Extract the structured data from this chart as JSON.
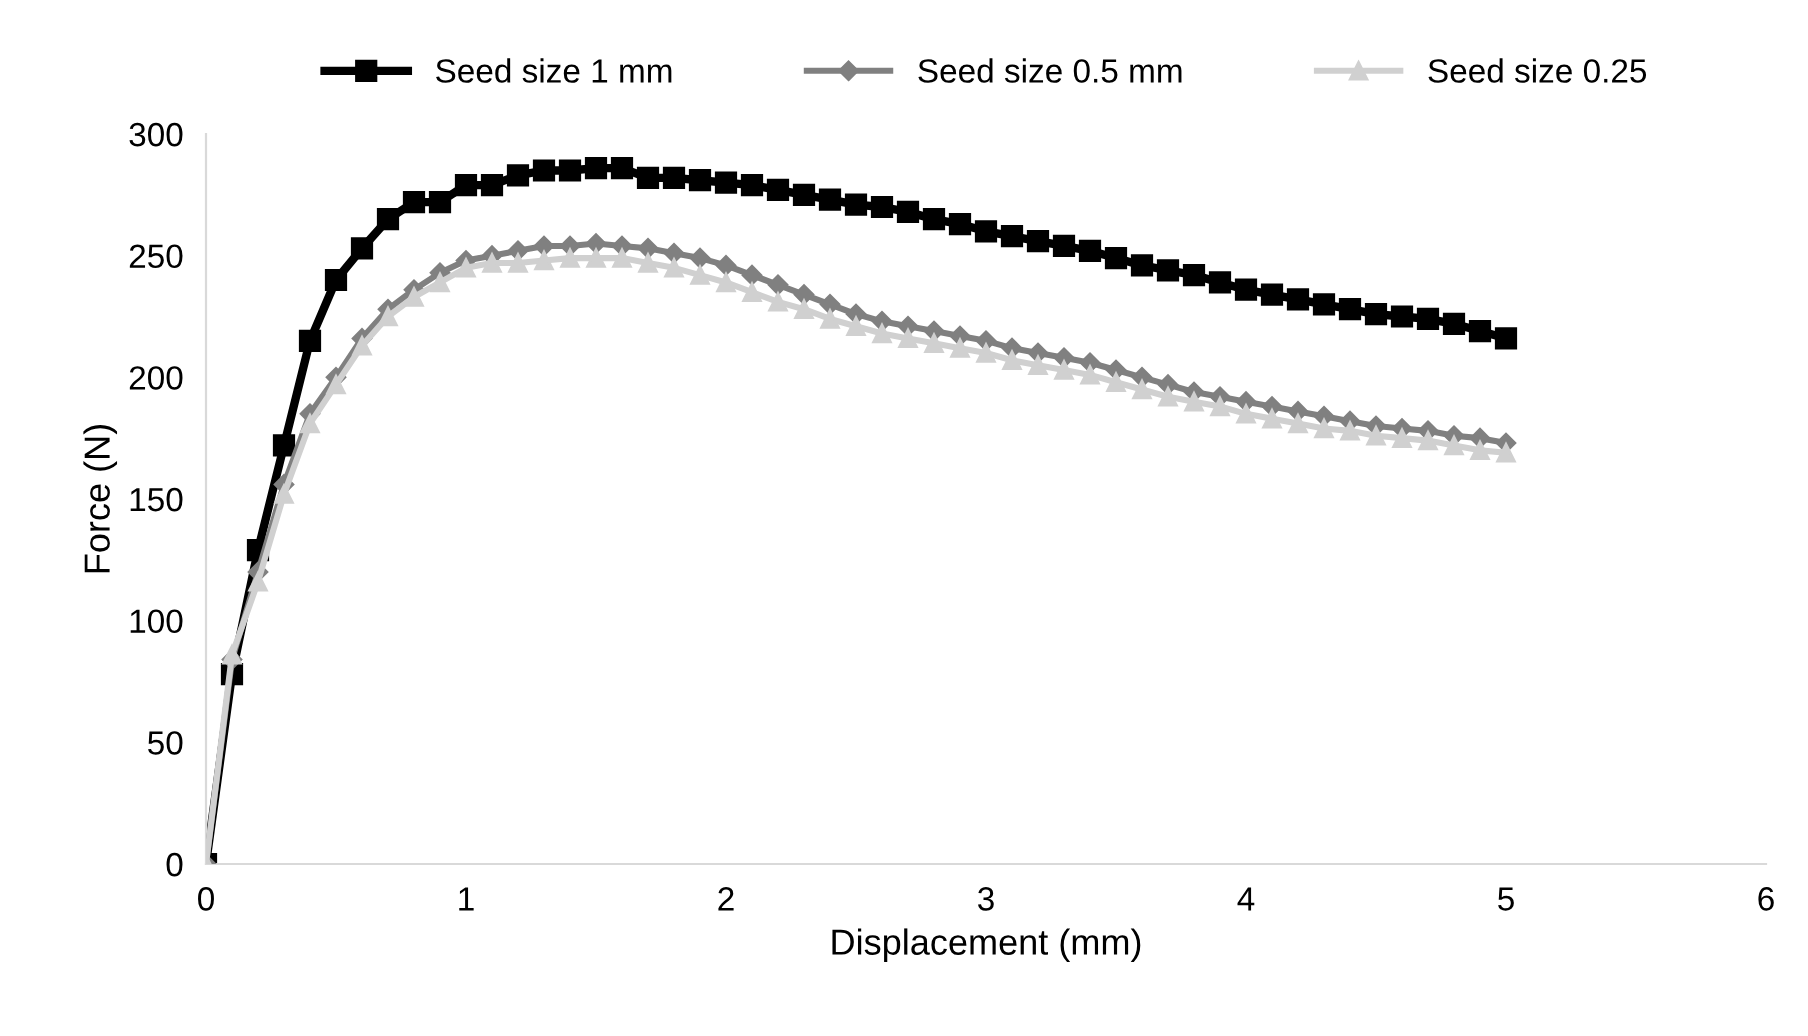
{
  "chart_data": {
    "type": "line",
    "xlabel": "Displacement (mm)",
    "ylabel": "Force (N)",
    "x": [
      0,
      0.1,
      0.2,
      0.3,
      0.4,
      0.5,
      0.6,
      0.7,
      0.8,
      0.9,
      1,
      1.1,
      1.2,
      1.3,
      1.4,
      1.5,
      1.6,
      1.7,
      1.8,
      1.9,
      2,
      2.1,
      2.2,
      2.3,
      2.4,
      2.5,
      2.6,
      2.7,
      2.8,
      2.9,
      3,
      3.1,
      3.2,
      3.3,
      3.4,
      3.5,
      3.6,
      3.7,
      3.8,
      3.9,
      4,
      4.1,
      4.2,
      4.3,
      4.4,
      4.5,
      4.6,
      4.7,
      4.8,
      4.9,
      5
    ],
    "series": [
      {
        "name": "Seed size 1 mm",
        "color": "#000000",
        "marker": "square",
        "values": [
          0,
          78,
          129,
          172,
          215,
          240,
          253,
          265,
          272,
          272,
          279,
          279,
          283,
          285,
          285,
          286,
          286,
          282,
          282,
          281,
          280,
          279,
          277,
          275,
          273,
          271,
          270,
          268,
          265,
          263,
          260,
          258,
          256,
          254,
          252,
          249,
          246,
          244,
          242,
          239,
          236,
          234,
          232,
          230,
          228,
          226,
          225,
          224,
          222,
          219,
          216
        ]
      },
      {
        "name": "Seed size 0.5 mm",
        "color": "#808080",
        "marker": "diamond",
        "values": [
          0,
          84,
          120,
          156,
          185,
          200,
          216,
          228,
          236,
          243,
          248,
          250,
          252,
          254,
          254,
          255,
          254,
          253,
          251,
          249,
          246,
          242,
          238,
          234,
          230,
          226,
          223,
          221,
          219,
          217,
          215,
          212,
          210,
          208,
          206,
          203,
          200,
          197,
          194,
          192,
          190,
          188,
          186,
          184,
          182,
          180,
          179,
          178,
          176,
          175,
          173
        ]
      },
      {
        "name": "Seed size 0.25",
        "color": "#d0d0d0",
        "marker": "triangle",
        "values": [
          0,
          86,
          116,
          152,
          181,
          197,
          213,
          225,
          233,
          239,
          245,
          247,
          247,
          248,
          249,
          249,
          249,
          247,
          245,
          242,
          239,
          235,
          231,
          228,
          224,
          221,
          218,
          216,
          214,
          212,
          210,
          207,
          205,
          203,
          201,
          198,
          195,
          192,
          190,
          188,
          185,
          183,
          181,
          179,
          178,
          176,
          175,
          174,
          172,
          170,
          169
        ]
      }
    ],
    "xlim": [
      0,
      6
    ],
    "xticks": [
      0,
      1,
      2,
      3,
      4,
      5,
      6
    ],
    "ylim": [
      0,
      300
    ],
    "yticks": [
      0,
      50,
      100,
      150,
      200,
      250,
      300
    ],
    "grid": false,
    "legend": "top",
    "line_style": "solid"
  }
}
